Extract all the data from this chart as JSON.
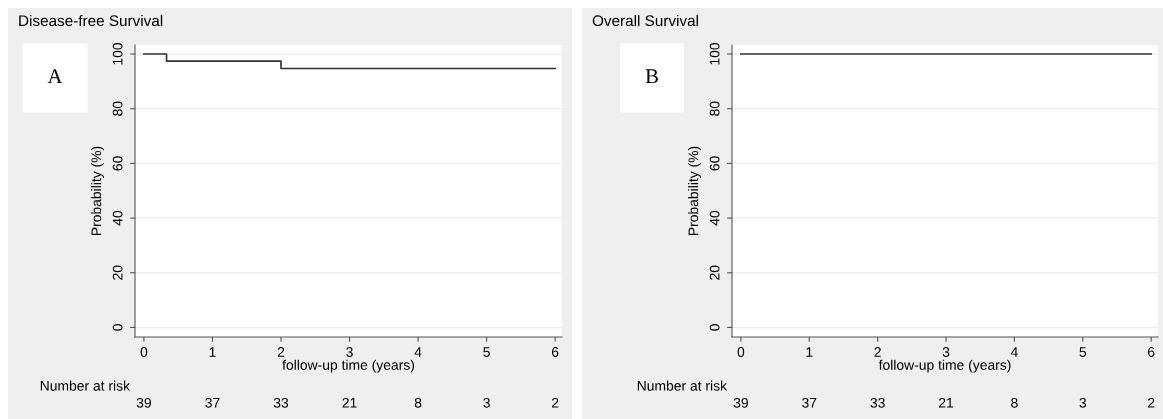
{
  "chart_data": [
    {
      "type": "step",
      "title": "Disease-free Survival",
      "xlabel": "follow-up time (years)",
      "ylabel": "Probability (%)",
      "x": [
        0,
        0.33,
        2,
        6
      ],
      "series": [
        {
          "color": "#333333",
          "values": [
            100,
            97.4,
            94.7,
            94.7
          ]
        }
      ],
      "xlim": [
        -0.13,
        6.1
      ],
      "xticks": [
        0,
        1,
        2,
        3,
        4,
        5,
        6
      ],
      "ylim": [
        -3.5,
        103.3
      ],
      "yticks": [
        0,
        20,
        40,
        60,
        80,
        100
      ],
      "grid": "y",
      "annotations": [
        "A",
        "Number at risk",
        "39",
        "37",
        "33",
        "21",
        "8",
        "3",
        "2"
      ]
    },
    {
      "type": "step",
      "title": "Overall Survival",
      "xlabel": "follow-up time (years)",
      "ylabel": "Probability (%)",
      "x": [
        0,
        6
      ],
      "series": [
        {
          "color": "#333333",
          "values": [
            100,
            100
          ]
        }
      ],
      "xlim": [
        -0.13,
        6.1
      ],
      "xticks": [
        0,
        1,
        2,
        3,
        4,
        5,
        6
      ],
      "ylim": [
        -3.5,
        103.3
      ],
      "yticks": [
        0,
        20,
        40,
        60,
        80,
        100
      ],
      "grid": "y",
      "annotations": [
        "B",
        "Number at risk",
        "39",
        "37",
        "33",
        "21",
        "8",
        "3",
        "2"
      ]
    }
  ]
}
